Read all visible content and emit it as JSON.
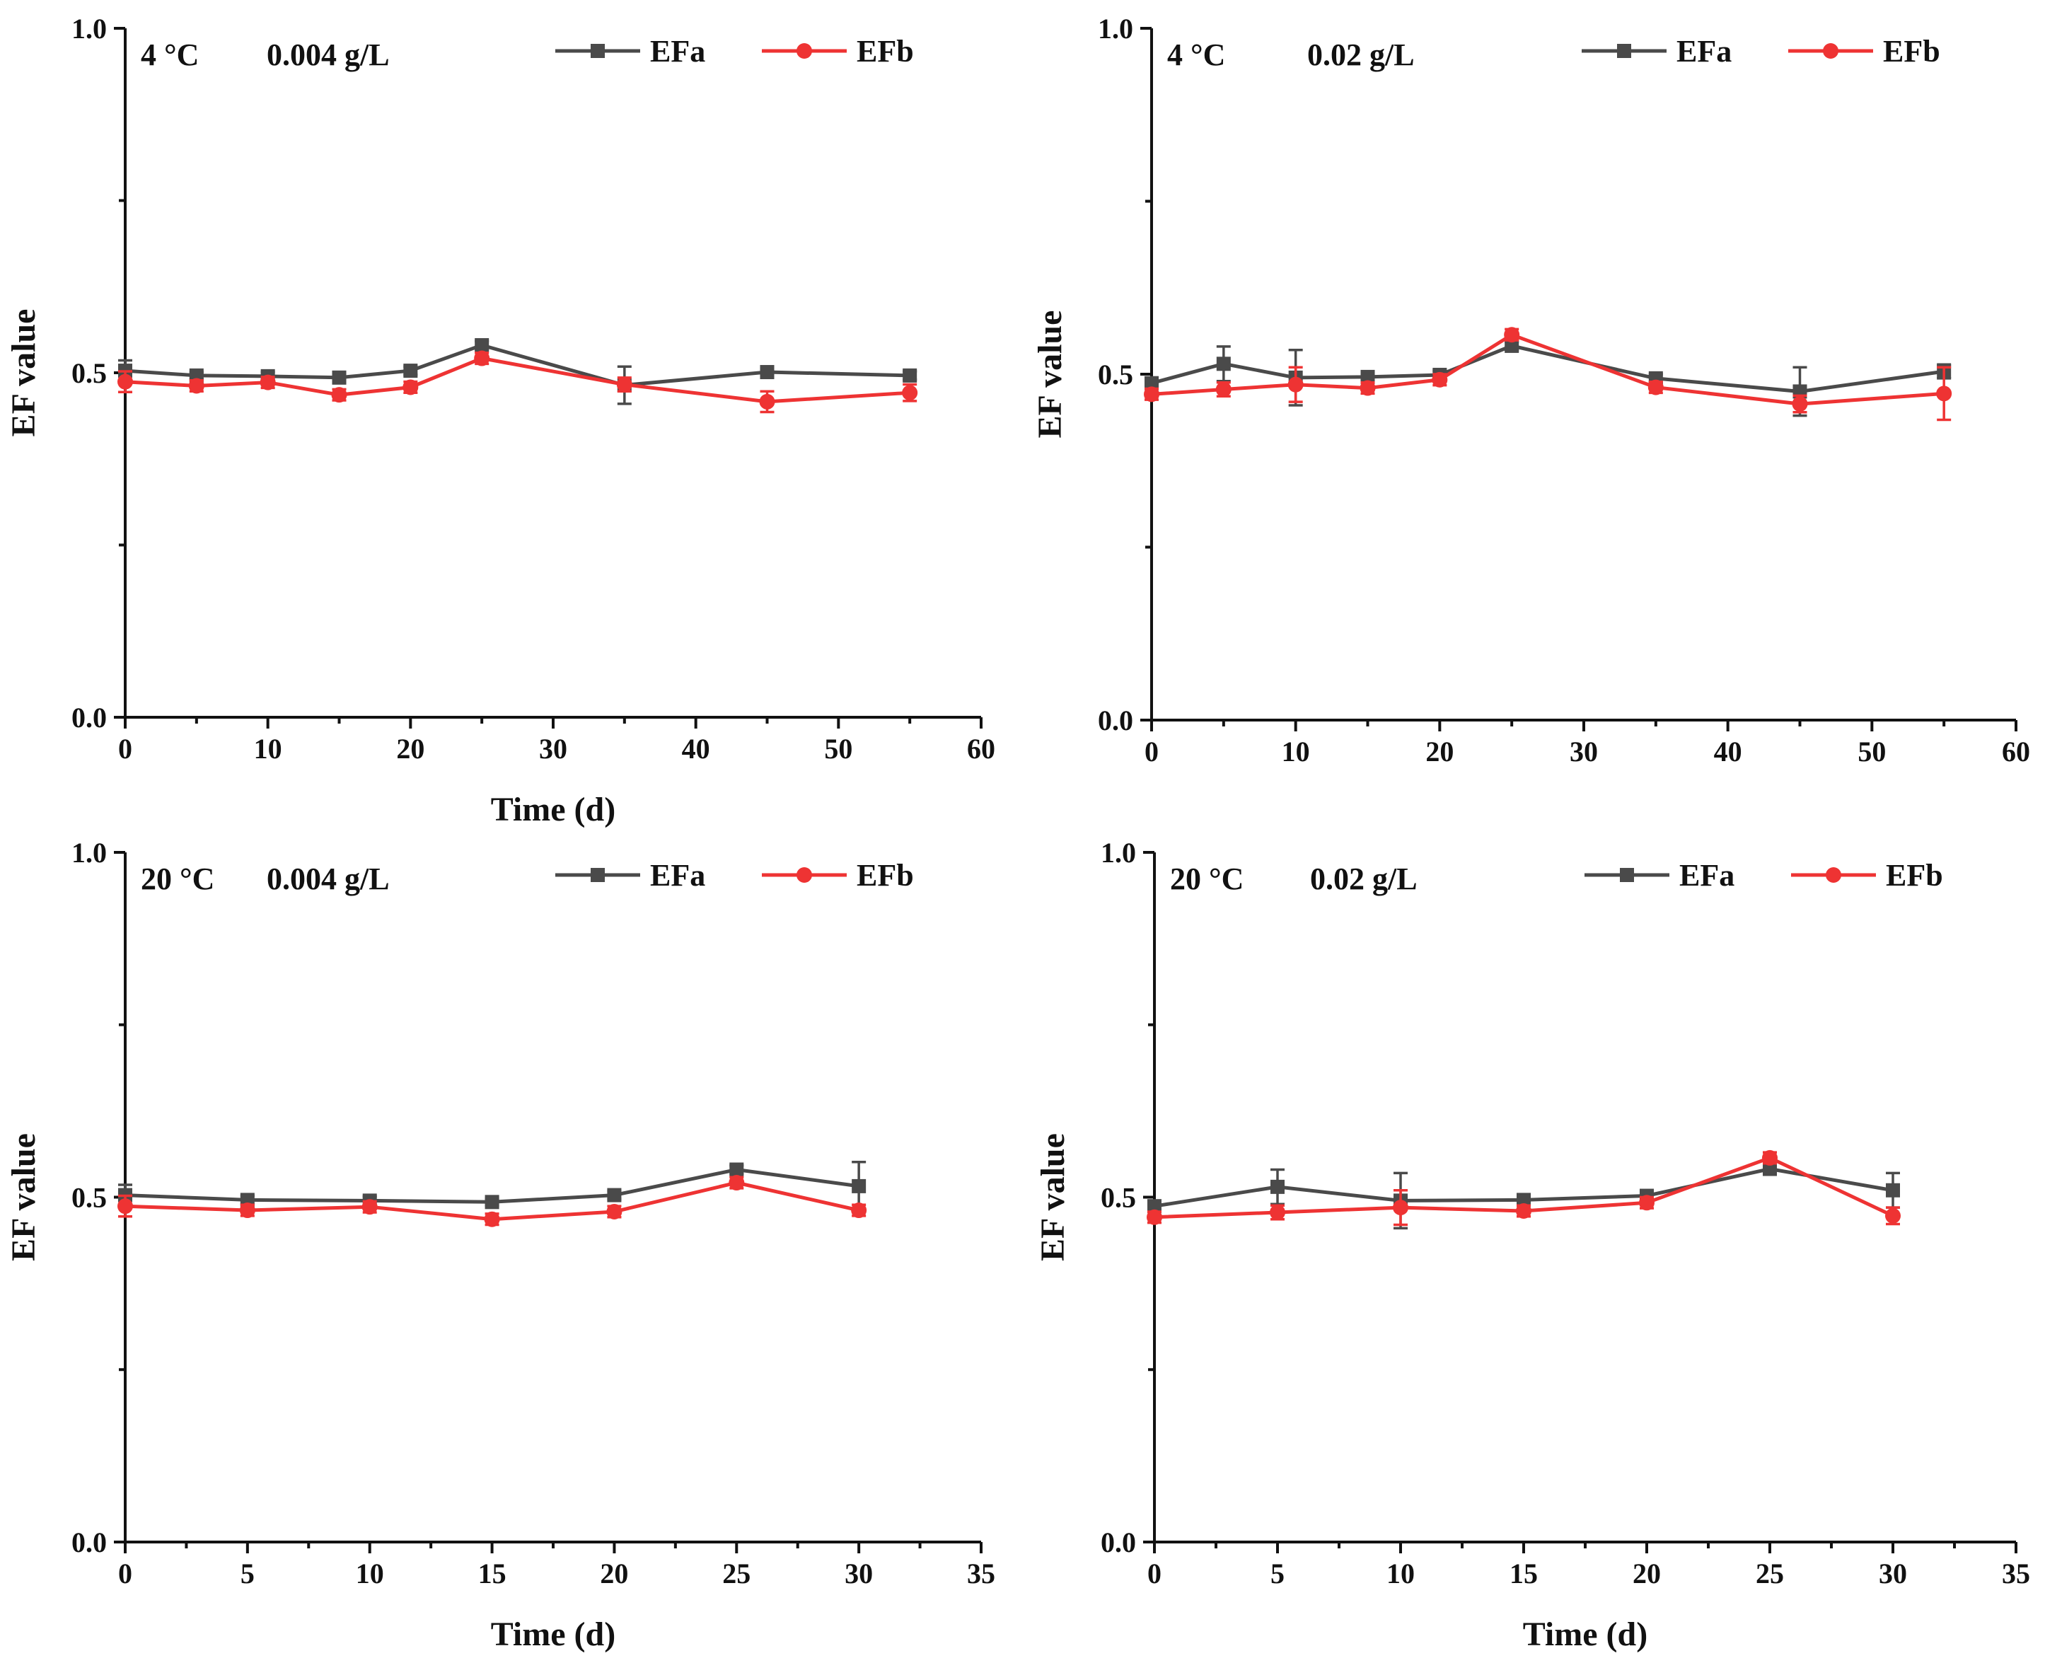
{
  "chart_data": [
    {
      "type": "line",
      "annotation_temp": "4 °C",
      "annotation_conc": "0.004 g/L",
      "xlabel": "Time (d)",
      "ylabel": "EF value",
      "xlim": [
        0,
        60
      ],
      "ylim": [
        0,
        1.0
      ],
      "xticks": [
        0,
        10,
        20,
        30,
        40,
        50,
        60
      ],
      "xtick_labels": [
        "0",
        "10",
        "20",
        "30",
        "40",
        "50",
        "60"
      ],
      "yticks": [
        0,
        0.5,
        1.0
      ],
      "ytick_labels": [
        "0.0",
        "0.5",
        "1.0"
      ],
      "legend_position": "top-right",
      "series": [
        {
          "name": "EFa",
          "color": "#4a4a4a",
          "marker": "square",
          "x": [
            0,
            5,
            10,
            15,
            20,
            25,
            35,
            45,
            55
          ],
          "values": [
            0.503,
            0.496,
            0.495,
            0.493,
            0.503,
            0.54,
            0.482,
            0.501,
            0.496
          ],
          "errors": [
            0.015,
            0.005,
            0.006,
            0.005,
            0.006,
            0.006,
            0.027,
            0.006,
            0.006
          ]
        },
        {
          "name": "EFb",
          "color": "#ee3333",
          "marker": "circle",
          "x": [
            0,
            5,
            10,
            15,
            20,
            25,
            35,
            45,
            55
          ],
          "values": [
            0.487,
            0.481,
            0.486,
            0.468,
            0.479,
            0.521,
            0.483,
            0.458,
            0.471
          ],
          "errors": [
            0.015,
            0.008,
            0.008,
            0.008,
            0.008,
            0.008,
            0.01,
            0.015,
            0.012
          ]
        }
      ]
    },
    {
      "type": "line",
      "annotation_temp": "4 °C",
      "annotation_conc": "0.02 g/L",
      "xlabel": "",
      "ylabel": "EF value",
      "xlim": [
        0,
        60
      ],
      "ylim": [
        0,
        1.0
      ],
      "xticks": [
        0,
        10,
        20,
        30,
        40,
        50,
        60
      ],
      "xtick_labels": [
        "0",
        "10",
        "20",
        "30",
        "40",
        "50",
        "60"
      ],
      "yticks": [
        0,
        0.5,
        1.0
      ],
      "ytick_labels": [
        "0.0",
        "0.5",
        "1.0"
      ],
      "legend_position": "top-right",
      "series": [
        {
          "name": "EFa",
          "color": "#4a4a4a",
          "marker": "square",
          "x": [
            0,
            5,
            10,
            15,
            20,
            25,
            35,
            45,
            55
          ],
          "values": [
            0.487,
            0.515,
            0.495,
            0.496,
            0.499,
            0.541,
            0.494,
            0.475,
            0.504
          ],
          "errors": [
            0.006,
            0.025,
            0.04,
            0.006,
            0.006,
            0.006,
            0.006,
            0.035,
            0.01
          ]
        },
        {
          "name": "EFb",
          "color": "#ee3333",
          "marker": "circle",
          "x": [
            0,
            5,
            10,
            15,
            20,
            25,
            35,
            45,
            55
          ],
          "values": [
            0.471,
            0.478,
            0.485,
            0.48,
            0.492,
            0.557,
            0.481,
            0.457,
            0.472
          ],
          "errors": [
            0.008,
            0.01,
            0.025,
            0.008,
            0.008,
            0.008,
            0.008,
            0.012,
            0.038
          ]
        }
      ]
    },
    {
      "type": "line",
      "annotation_temp": "20 °C",
      "annotation_conc": "0.004 g/L",
      "xlabel": "Time (d)",
      "ylabel": "EF value",
      "xlim": [
        0,
        35
      ],
      "ylim": [
        0,
        1.0
      ],
      "xticks": [
        0,
        5,
        10,
        15,
        20,
        25,
        30,
        35
      ],
      "xtick_labels": [
        "0",
        "5",
        "10",
        "15",
        "20",
        "25",
        "30",
        "35"
      ],
      "yticks": [
        0,
        0.5,
        1.0
      ],
      "ytick_labels": [
        "0.0",
        "0.5",
        "1.0"
      ],
      "legend_position": "top-right",
      "series": [
        {
          "name": "EFa",
          "color": "#4a4a4a",
          "marker": "square",
          "x": [
            0,
            5,
            10,
            15,
            20,
            25,
            30
          ],
          "values": [
            0.503,
            0.496,
            0.495,
            0.493,
            0.503,
            0.54,
            0.516
          ],
          "errors": [
            0.015,
            0.006,
            0.006,
            0.005,
            0.006,
            0.006,
            0.035
          ]
        },
        {
          "name": "EFb",
          "color": "#ee3333",
          "marker": "circle",
          "x": [
            0,
            5,
            10,
            15,
            20,
            25,
            30
          ],
          "values": [
            0.487,
            0.481,
            0.486,
            0.468,
            0.479,
            0.521,
            0.481
          ],
          "errors": [
            0.015,
            0.008,
            0.008,
            0.008,
            0.008,
            0.008,
            0.008
          ]
        }
      ]
    },
    {
      "type": "line",
      "annotation_temp": "20 °C",
      "annotation_conc": "0.02 g/L",
      "xlabel": "Time (d)",
      "ylabel": "EF value",
      "xlim": [
        0,
        35
      ],
      "ylim": [
        0,
        1.0
      ],
      "xticks": [
        0,
        5,
        10,
        15,
        20,
        25,
        30,
        35
      ],
      "xtick_labels": [
        "0",
        "5",
        "10",
        "15",
        "20",
        "25",
        "30",
        "35"
      ],
      "yticks": [
        0,
        0.5,
        1.0
      ],
      "ytick_labels": [
        "0.0",
        "0.5",
        "1.0"
      ],
      "legend_position": "top-right",
      "series": [
        {
          "name": "EFa",
          "color": "#4a4a4a",
          "marker": "square",
          "x": [
            0,
            5,
            10,
            15,
            20,
            25,
            30
          ],
          "values": [
            0.487,
            0.515,
            0.495,
            0.496,
            0.502,
            0.541,
            0.51
          ],
          "errors": [
            0.006,
            0.025,
            0.04,
            0.006,
            0.006,
            0.006,
            0.025
          ]
        },
        {
          "name": "EFb",
          "color": "#ee3333",
          "marker": "circle",
          "x": [
            0,
            5,
            10,
            15,
            20,
            25,
            30
          ],
          "values": [
            0.471,
            0.478,
            0.485,
            0.48,
            0.492,
            0.557,
            0.473
          ],
          "errors": [
            0.008,
            0.01,
            0.025,
            0.008,
            0.008,
            0.008,
            0.012
          ]
        }
      ]
    }
  ]
}
